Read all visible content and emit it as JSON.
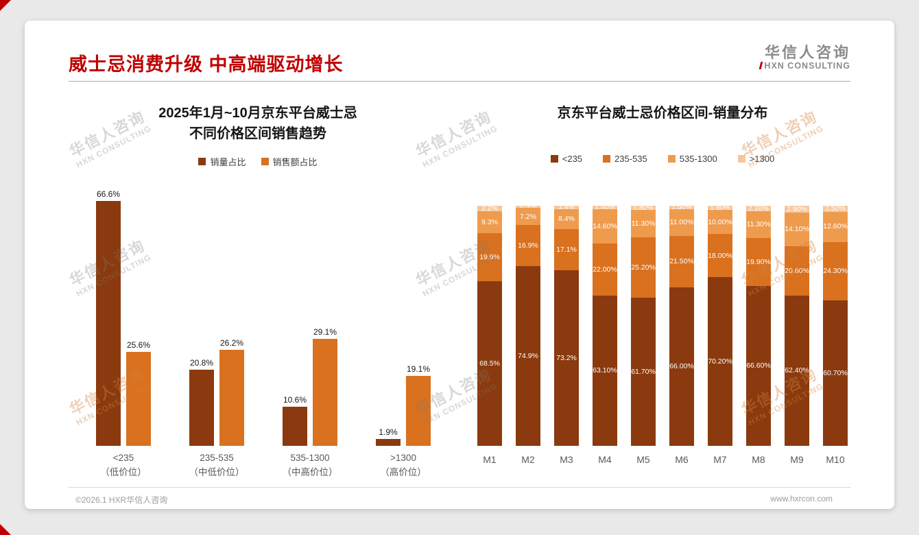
{
  "page": {
    "title": "威士忌消费升级 中高端驱动增长",
    "accent_color": "#c00000",
    "logo": {
      "cn": "华信人咨询",
      "en": "HXN CONSULTING"
    },
    "watermark": {
      "cn": "华信人咨询",
      "en": "HXN CONSULTING"
    },
    "footer": {
      "left": "©2026.1 HXR华信人咨询",
      "right": "www.hxrcon.com"
    }
  },
  "chart_data": [
    {
      "type": "bar",
      "title_lines": [
        "2025年1月~10月京东平台威士忌",
        "不同价格区间销售趋势"
      ],
      "categories": [
        "<235",
        "235-535",
        "535-1300",
        ">1300"
      ],
      "category_sublabels": [
        "（低价位）",
        "（中低价位）",
        "（中高价位）",
        "（高价位）"
      ],
      "series": [
        {
          "name": "销量占比",
          "color": "#8a3a0e",
          "values": [
            66.6,
            20.8,
            10.6,
            1.9
          ],
          "labels": [
            "66.6%",
            "20.8%",
            "10.6%",
            "1.9%"
          ]
        },
        {
          "name": "销售额占比",
          "color": "#d9711f",
          "values": [
            25.6,
            26.2,
            29.1,
            19.1
          ],
          "labels": [
            "25.6%",
            "26.2%",
            "29.1%",
            "19.1%"
          ]
        }
      ],
      "ylim": [
        0,
        70
      ],
      "grid": false,
      "legend_position": "top"
    },
    {
      "type": "stacked-bar",
      "title": "京东平台威士忌价格区间-销量分布",
      "categories": [
        "M1",
        "M2",
        "M3",
        "M4",
        "M5",
        "M6",
        "M7",
        "M8",
        "M9",
        "M10"
      ],
      "series": [
        {
          "name": "<235",
          "color": "#8a3a0e",
          "values": [
            68.5,
            74.9,
            73.2,
            63.1,
            61.7,
            66.0,
            70.2,
            66.6,
            62.4,
            60.7
          ],
          "labels": [
            "68.5%",
            "74.9%",
            "73.2%",
            "63.10%",
            "61.70%",
            "66.00%",
            "70.20%",
            "66.60%",
            "62.40%",
            "60.70%"
          ]
        },
        {
          "name": "235-535",
          "color": "#d9711f",
          "values": [
            19.9,
            16.9,
            17.1,
            22.0,
            25.2,
            21.5,
            18.0,
            19.9,
            20.6,
            24.3
          ],
          "labels": [
            "19.9%",
            "16.9%",
            "17.1%",
            "22.00%",
            "25.20%",
            "21.50%",
            "18.00%",
            "19.90%",
            "20.60%",
            "24.30%"
          ]
        },
        {
          "name": "535-1300",
          "color": "#ef9b4d",
          "values": [
            9.3,
            7.2,
            8.4,
            14.6,
            11.3,
            11.0,
            10.0,
            11.3,
            14.1,
            12.6
          ],
          "labels": [
            "9.3%",
            "7.2%",
            "8.4%",
            "14.60%",
            "11.30%",
            "11.00%",
            "10.00%",
            "11.30%",
            "14.10%",
            "12.60%"
          ]
        },
        {
          "name": ">1300",
          "color": "#f6c79c",
          "values": [
            2.2,
            0.9,
            1.4,
            1.4,
            1.8,
            1.5,
            1.8,
            2.2,
            2.9,
            2.5
          ],
          "labels": [
            "2.2%",
            "0.9%",
            "1.4%",
            "1.40%",
            "1.80%",
            "1.50%",
            "1.80%",
            "2.20%",
            "2.90%",
            "2.50%"
          ]
        }
      ],
      "ylim": [
        0,
        100
      ],
      "grid": false,
      "legend_position": "top"
    }
  ]
}
